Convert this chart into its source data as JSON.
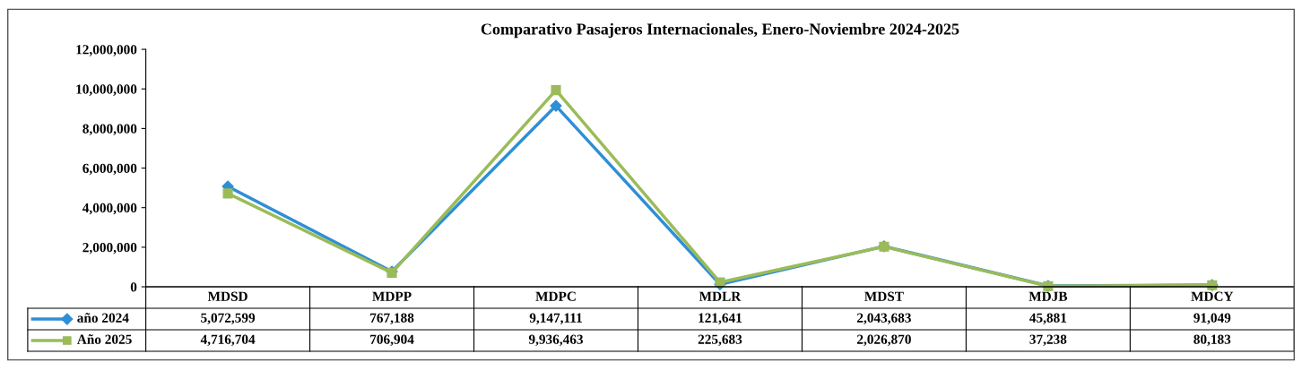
{
  "chart_data": {
    "type": "line",
    "title": "Comparativo Pasajeros Internacionales, Enero-Noviembre 2024-2025",
    "categories": [
      "MDSD",
      "MDPP",
      "MDPC",
      "MDLR",
      "MDST",
      "MDJB",
      "MDCY"
    ],
    "series": [
      {
        "name": "año 2024",
        "color": "#2e8fd6",
        "marker": "diamond",
        "values": [
          5072599,
          767188,
          9147111,
          121641,
          2043683,
          45881,
          91049
        ],
        "value_labels": [
          "5,072,599",
          "767,188",
          "9,147,111",
          "121,641",
          "2,043,683",
          "45,881",
          "91,049"
        ]
      },
      {
        "name": "Año 2025",
        "color": "#9bbb59",
        "marker": "square",
        "values": [
          4716704,
          706904,
          9936463,
          225683,
          2026870,
          37238,
          80183
        ],
        "value_labels": [
          "4,716,704",
          "706,904",
          "9,936,463",
          "225,683",
          "2,026,870",
          "37,238",
          "80,183"
        ]
      }
    ],
    "ylim": [
      0,
      12000000
    ],
    "yticks": [
      {
        "value": 0,
        "label": "0"
      },
      {
        "value": 2000000,
        "label": "2,000,000"
      },
      {
        "value": 4000000,
        "label": "4,000,000"
      },
      {
        "value": 6000000,
        "label": "6,000,000"
      },
      {
        "value": 8000000,
        "label": "8,000,000"
      },
      {
        "value": 10000000,
        "label": "10,000,000"
      },
      {
        "value": 12000000,
        "label": "12,000,000"
      }
    ],
    "legend": "bottom",
    "grid": false,
    "line_style": "solid"
  }
}
